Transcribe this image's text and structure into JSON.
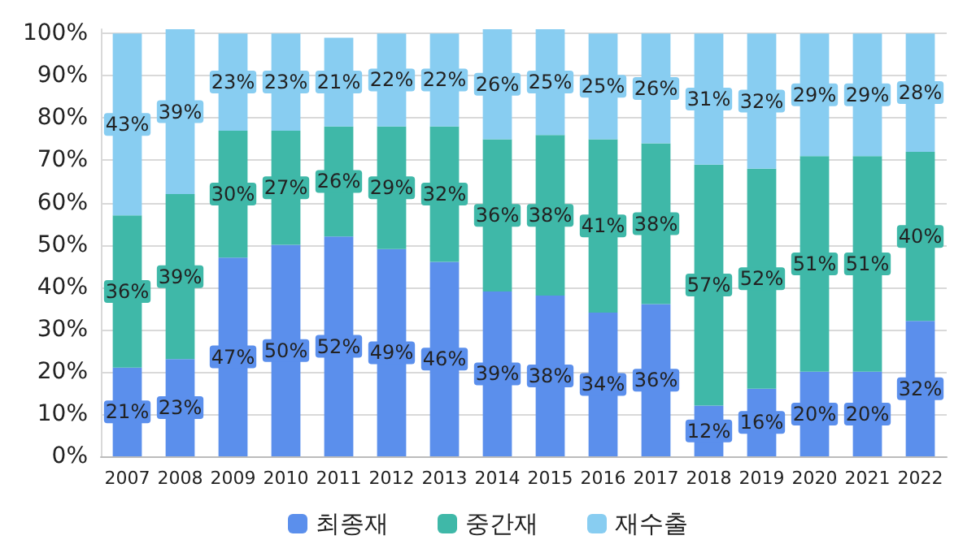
{
  "chart_data": {
    "type": "bar",
    "stacked": true,
    "categories": [
      "2007",
      "2008",
      "2009",
      "2010",
      "2011",
      "2012",
      "2013",
      "2014",
      "2015",
      "2016",
      "2017",
      "2018",
      "2019",
      "2020",
      "2021",
      "2022"
    ],
    "series": [
      {
        "name": "최종재",
        "color": "#5b8fec",
        "values": [
          21,
          23,
          47,
          50,
          52,
          49,
          46,
          39,
          38,
          34,
          36,
          12,
          16,
          20,
          20,
          32
        ],
        "value_labels": [
          "21%",
          "23%",
          "47%",
          "50%",
          "52%",
          "49%",
          "46%",
          "39%",
          "38%",
          "34%",
          "36%",
          "12%",
          "16%",
          "20%",
          "20%",
          "32%"
        ]
      },
      {
        "name": "중간재",
        "color": "#3fb8a8",
        "values": [
          36,
          39,
          30,
          27,
          26,
          29,
          32,
          36,
          38,
          41,
          38,
          57,
          52,
          51,
          51,
          40
        ],
        "value_labels": [
          "36%",
          "39%",
          "30%",
          "27%",
          "26%",
          "29%",
          "32%",
          "36%",
          "38%",
          "41%",
          "38%",
          "57%",
          "52%",
          "51%",
          "51%",
          "40%"
        ]
      },
      {
        "name": "재수출",
        "color": "#88cdf1",
        "values": [
          43,
          39,
          23,
          23,
          21,
          22,
          22,
          26,
          25,
          25,
          26,
          31,
          32,
          29,
          29,
          28
        ],
        "value_labels": [
          "43%",
          "39%",
          "23%",
          "23%",
          "21%",
          "22%",
          "22%",
          "26%",
          "25%",
          "25%",
          "26%",
          "31%",
          "32%",
          "29%",
          "29%",
          "28%"
        ]
      }
    ],
    "ylim": [
      0,
      101
    ],
    "yticks": [
      {
        "value": 0,
        "label": "0%"
      },
      {
        "value": 10,
        "label": "10%"
      },
      {
        "value": 20,
        "label": "20%"
      },
      {
        "value": 30,
        "label": "30%"
      },
      {
        "value": 40,
        "label": "40%"
      },
      {
        "value": 50,
        "label": "50%"
      },
      {
        "value": 60,
        "label": "60%"
      },
      {
        "value": 70,
        "label": "70%"
      },
      {
        "value": 80,
        "label": "80%"
      },
      {
        "value": 90,
        "label": "90%"
      },
      {
        "value": 100,
        "label": "100%"
      }
    ],
    "grid": "y",
    "legend": "bottom"
  }
}
